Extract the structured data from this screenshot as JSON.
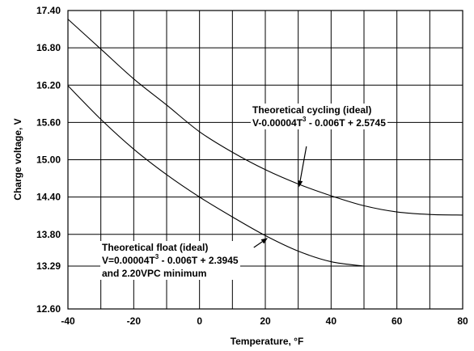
{
  "chart_data": {
    "type": "line",
    "xlabel": "Temperature, °F",
    "ylabel": "Charge voltage, V",
    "xlim": [
      -40,
      80
    ],
    "ylim": [
      12.6,
      17.4
    ],
    "x_ticks": [
      -40,
      -20,
      0,
      20,
      40,
      60,
      80
    ],
    "x_tick_labels": [
      "-40",
      "-20",
      "0",
      "20",
      "40",
      "60",
      "80"
    ],
    "y_tick_labels": [
      {
        "value": 17.4,
        "label": "17.40"
      },
      {
        "value": 16.8,
        "label": "16.80"
      },
      {
        "value": 16.2,
        "label": "16.20"
      },
      {
        "value": 15.6,
        "label": "15.60"
      },
      {
        "value": 15.0,
        "label": "15.00"
      },
      {
        "value": 14.4,
        "label": "14.40"
      },
      {
        "value": 13.8,
        "label": "13.80"
      },
      {
        "value": 13.29,
        "label": "13.29"
      },
      {
        "value": 12.6,
        "label": "12.60"
      }
    ],
    "grid": true,
    "series": [
      {
        "id": "cycling",
        "x": [
          -40,
          -30,
          -20,
          -10,
          0,
          10,
          20,
          30,
          40,
          50,
          60,
          70,
          80
        ],
        "values": [
          17.26,
          16.78,
          16.3,
          15.88,
          15.45,
          15.12,
          14.84,
          14.61,
          14.42,
          14.26,
          14.16,
          14.12,
          14.11
        ]
      },
      {
        "id": "float",
        "x": [
          -40,
          -30,
          -20,
          -10,
          0,
          10,
          20,
          30,
          40,
          50
        ],
        "values": [
          16.19,
          15.65,
          15.17,
          14.76,
          14.4,
          14.08,
          13.78,
          13.53,
          13.36,
          13.29
        ]
      }
    ],
    "annotations": {
      "cycling": {
        "line1": "Theoretical cycling (ideal)",
        "line2_pre": "V-0.00004T",
        "line2_sup": "3",
        "line2_post": " - 0.006T + 2.5745",
        "arrow_to": [
          30,
          14.61
        ]
      },
      "float": {
        "line1": "Theoretical float (ideal)",
        "line2_pre": "V=0.00004T",
        "line2_sup": "3",
        "line2_post": " - 0.006T + 2.3945",
        "line3": "and 2.20VPC minimum",
        "arrow_to": [
          20,
          13.78
        ]
      }
    }
  }
}
